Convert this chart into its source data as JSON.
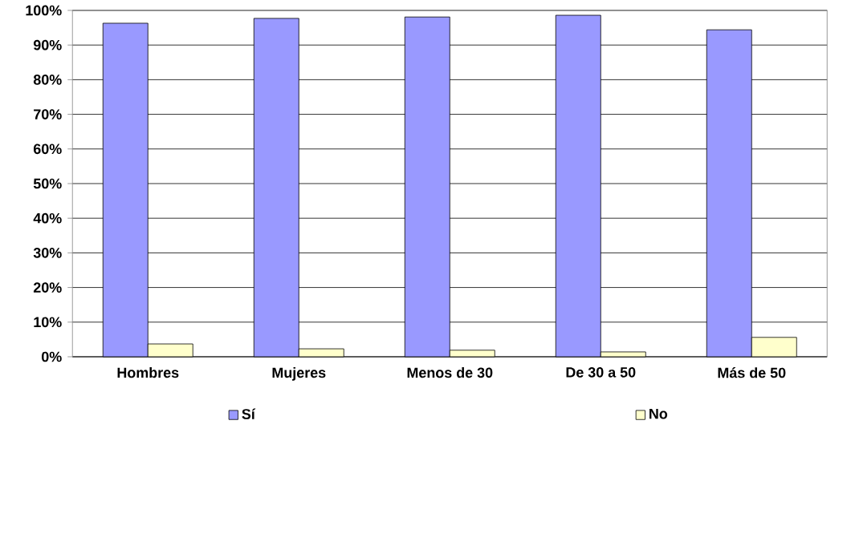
{
  "chart_data": {
    "type": "bar",
    "categories": [
      "Hombres",
      "Mujeres",
      "Menos de 30",
      "De 30 a 50",
      "Más de 50"
    ],
    "series": [
      {
        "name": "Sí",
        "color": "#9999ff",
        "values": [
          96.3,
          97.7,
          98.1,
          98.6,
          94.4
        ]
      },
      {
        "name": "No",
        "color": "#ffffcc",
        "values": [
          3.7,
          2.3,
          1.9,
          1.4,
          5.6
        ]
      }
    ],
    "ylim": [
      0,
      100
    ],
    "yticks": [
      {
        "value": 0,
        "label": "0%"
      },
      {
        "value": 10,
        "label": "10%"
      },
      {
        "value": 20,
        "label": "20%"
      },
      {
        "value": 30,
        "label": "30%"
      },
      {
        "value": 40,
        "label": "40%"
      },
      {
        "value": 50,
        "label": "50%"
      },
      {
        "value": 60,
        "label": "60%"
      },
      {
        "value": 70,
        "label": "70%"
      },
      {
        "value": 80,
        "label": "80%"
      },
      {
        "value": 90,
        "label": "90%"
      },
      {
        "value": 100,
        "label": "100%"
      }
    ],
    "grid": "y",
    "legend": "bottom"
  }
}
